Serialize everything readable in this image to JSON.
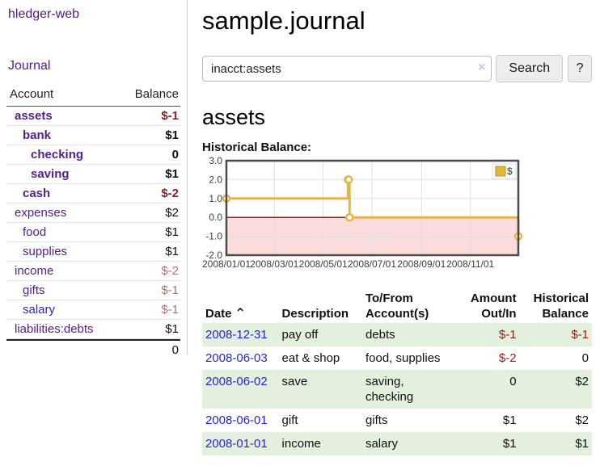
{
  "app": {
    "title": "hledger-web",
    "nav_journal": "Journal"
  },
  "sidebar": {
    "header": {
      "account": "Account",
      "balance": "Balance"
    },
    "accounts": [
      {
        "name": "assets",
        "balance": "$-1"
      },
      {
        "name": "bank",
        "balance": "$1"
      },
      {
        "name": "checking",
        "balance": "0"
      },
      {
        "name": "saving",
        "balance": "$1"
      },
      {
        "name": "cash",
        "balance": "$-2"
      },
      {
        "name": "expenses",
        "balance": "$2"
      },
      {
        "name": "food",
        "balance": "$1"
      },
      {
        "name": "supplies",
        "balance": "$1"
      },
      {
        "name": "income",
        "balance": "$-2"
      },
      {
        "name": "gifts",
        "balance": "$-1"
      },
      {
        "name": "salary",
        "balance": "$-1"
      },
      {
        "name": "liabilities:debts",
        "balance": "$1"
      }
    ],
    "total": "0"
  },
  "header": {
    "title": "sample.journal"
  },
  "search": {
    "value": "inacct:assets",
    "clear_label": "×",
    "button": "Search",
    "help_button": "?"
  },
  "account_page": {
    "heading": "assets",
    "chart_label": "Historical Balance:"
  },
  "chart_data": {
    "type": "line",
    "style": "step-after",
    "title": "Historical Balance:",
    "series": [
      {
        "name": "$",
        "color": "#e5b548",
        "points": [
          [
            "2008-01-01",
            1.0
          ],
          [
            "2008-06-01",
            2.0
          ],
          [
            "2008-06-02",
            2.0
          ],
          [
            "2008-06-03",
            0.0
          ],
          [
            "2008-12-31",
            -1.0
          ]
        ]
      }
    ],
    "xlim": [
      "2008-01-01",
      "2008-12-31"
    ],
    "ylim": [
      -2.0,
      3.0
    ],
    "yticks": [
      "3.0",
      "2.0",
      "1.0",
      "0.0",
      "-1.0",
      "-2.0"
    ],
    "xticks": [
      "2008/01/01",
      "2008/03/01",
      "2008/05/01",
      "2008/07/01",
      "2008/09/01",
      "2008/11/01"
    ],
    "legend": {
      "position": "top-right",
      "label": "$"
    },
    "grid": true,
    "colors": {
      "line": "#e5b548",
      "marker_fill": "#ffffff",
      "negative_fill": "#fbdcdc",
      "zero_line": "#8f1d1d",
      "grid": "#e0e0e0",
      "border": "#4a4a4a",
      "legend_swatch": "#e3b53c",
      "legend_swatch_border": "#b8952d",
      "tick_text": "#3c3c3c"
    }
  },
  "register": {
    "columns": {
      "date": "Date",
      "sort_icon": "⌃",
      "description": "Description",
      "accounts": "To/From Account(s)",
      "amount": "Amount Out/In",
      "balance": "Historical Balance"
    },
    "rows": [
      {
        "date": "2008-12-31",
        "description": "pay off",
        "accounts": "debts",
        "amount": "$-1",
        "balance": "$-1"
      },
      {
        "date": "2008-06-03",
        "description": "eat & shop",
        "accounts": "food, supplies",
        "amount": "$-2",
        "balance": "0"
      },
      {
        "date": "2008-06-02",
        "description": "save",
        "accounts": "saving,\nchecking",
        "amount": "0",
        "balance": "$2"
      },
      {
        "date": "2008-06-01",
        "description": "gift",
        "accounts": "gifts",
        "amount": "$1",
        "balance": "$2"
      },
      {
        "date": "2008-01-01",
        "description": "income",
        "accounts": "salary",
        "amount": "$1",
        "balance": "$1"
      }
    ]
  }
}
